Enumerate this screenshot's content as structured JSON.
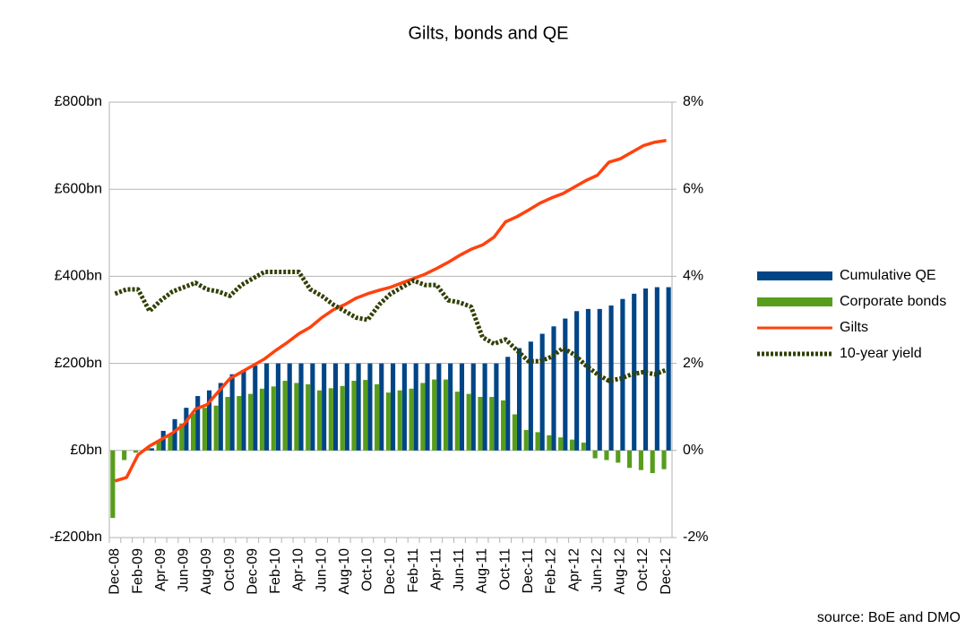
{
  "chart_data": {
    "type": "bar",
    "title": "Gilts, bonds and QE",
    "categories": [
      "Dec-08",
      null,
      "Feb-09",
      null,
      "Apr-09",
      null,
      "Jun-09",
      null,
      "Aug-09",
      null,
      "Oct-09",
      null,
      "Dec-09",
      null,
      "Feb-10",
      null,
      "Apr-10",
      null,
      "Jun-10",
      null,
      "Aug-10",
      null,
      "Oct-10",
      null,
      "Dec-10",
      null,
      "Feb-11",
      null,
      "Apr-11",
      null,
      "Jun-11",
      null,
      "Aug-11",
      null,
      "Oct-11",
      null,
      "Dec-11",
      null,
      "Feb-12",
      null,
      "Apr-12",
      null,
      "Jun-12",
      null,
      "Aug-12",
      null,
      "Oct-12",
      null,
      "Dec-12"
    ],
    "series": [
      {
        "name": "Cumulative QE",
        "type": "bar",
        "color": "#004586",
        "values": [
          0,
          0,
          0,
          5,
          45,
          72,
          98,
          125,
          138,
          155,
          175,
          185,
          195,
          200,
          200,
          200,
          200,
          200,
          200,
          200,
          200,
          200,
          200,
          200,
          200,
          200,
          200,
          200,
          200,
          200,
          200,
          200,
          200,
          200,
          215,
          235,
          250,
          268,
          285,
          303,
          320,
          325,
          325,
          333,
          348,
          360,
          372,
          375,
          375
        ]
      },
      {
        "name": "Corporate bonds",
        "type": "bar",
        "color": "#579d1c",
        "values": [
          -155,
          -22,
          -5,
          5,
          22,
          38,
          62,
          85,
          98,
          103,
          123,
          125,
          130,
          142,
          147,
          160,
          155,
          152,
          138,
          143,
          148,
          160,
          162,
          152,
          133,
          138,
          142,
          155,
          163,
          163,
          135,
          130,
          123,
          123,
          115,
          83,
          47,
          42,
          35,
          30,
          25,
          18,
          -18,
          -22,
          -28,
          -40,
          -45,
          -52,
          -43
        ]
      },
      {
        "name": "Gilts",
        "type": "line",
        "color": "#ff420e",
        "values": [
          -70,
          -62,
          -10,
          10,
          25,
          40,
          60,
          95,
          105,
          135,
          165,
          180,
          195,
          210,
          230,
          248,
          268,
          283,
          305,
          323,
          335,
          350,
          360,
          368,
          375,
          385,
          395,
          405,
          418,
          432,
          448,
          462,
          472,
          490,
          525,
          537,
          552,
          568,
          580,
          590,
          605,
          620,
          632,
          662,
          670,
          685,
          700,
          708,
          712
        ]
      },
      {
        "name": "10-year yield",
        "type": "line",
        "dashed": true,
        "axis": "y2",
        "color": "#314004",
        "values": [
          3.6,
          3.7,
          3.7,
          3.2,
          3.45,
          3.65,
          3.75,
          3.85,
          3.7,
          3.65,
          3.55,
          3.8,
          3.95,
          4.1,
          4.1,
          4.1,
          4.1,
          3.7,
          3.55,
          3.35,
          3.2,
          3.05,
          3.0,
          3.35,
          3.6,
          3.75,
          3.9,
          3.8,
          3.8,
          3.45,
          3.4,
          3.3,
          2.6,
          2.45,
          2.55,
          2.3,
          2.05,
          2.05,
          2.15,
          2.35,
          2.2,
          1.95,
          1.75,
          1.6,
          1.65,
          1.75,
          1.8,
          1.75,
          1.85
        ]
      }
    ],
    "ylim": [
      -200,
      800
    ],
    "yticks": [
      {
        "value": -200,
        "label": "-£200bn"
      },
      {
        "value": 0,
        "label": "£0bn"
      },
      {
        "value": 200,
        "label": "£200bn"
      },
      {
        "value": 400,
        "label": "£400bn"
      },
      {
        "value": 600,
        "label": "£600bn"
      },
      {
        "value": 800,
        "label": "£800bn"
      }
    ],
    "y2lim": [
      -2,
      8
    ],
    "y2ticks": [
      {
        "value": -2,
        "label": "-2%"
      },
      {
        "value": 0,
        "label": "0%"
      },
      {
        "value": 2,
        "label": "2%"
      },
      {
        "value": 4,
        "label": "4%"
      },
      {
        "value": 6,
        "label": "6%"
      },
      {
        "value": 8,
        "label": "8%"
      }
    ],
    "grid": true,
    "legend": "right",
    "annotation": "source: BoE and DMO"
  }
}
